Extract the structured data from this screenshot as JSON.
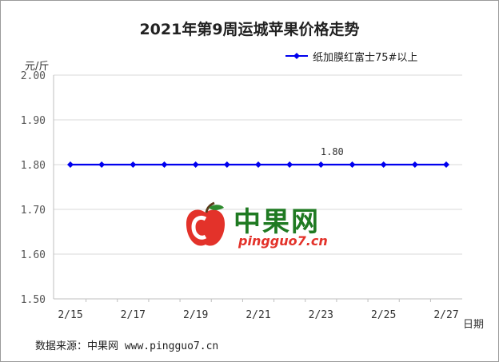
{
  "title": "2021年第9周运城苹果价格走势",
  "y_unit": "元/斤",
  "x_unit": "日期",
  "source": "数据来源：中果网 www.pingguo7.cn",
  "watermark": {
    "name": "中果网",
    "url": "pingguo7.cn"
  },
  "colors": {
    "series": "#0000ee",
    "grid": "#d9d9d9",
    "axis": "#bfbfbf",
    "label": "#555555"
  },
  "chart_data": {
    "type": "line",
    "x": [
      "2/15",
      "2/16",
      "2/17",
      "2/18",
      "2/19",
      "2/20",
      "2/21",
      "2/22",
      "2/23",
      "2/24",
      "2/25",
      "2/26",
      "2/27"
    ],
    "x_tick_labels": [
      "2/15",
      "2/17",
      "2/19",
      "2/21",
      "2/23",
      "2/25",
      "2/27"
    ],
    "series": [
      {
        "name": "纸加膜红富士75#以上",
        "values": [
          1.8,
          1.8,
          1.8,
          1.8,
          1.8,
          1.8,
          1.8,
          1.8,
          1.8,
          1.8,
          1.8,
          1.8,
          1.8
        ],
        "marker": "diamond"
      }
    ],
    "data_labels": [
      {
        "index": 8,
        "text": "1.80"
      }
    ],
    "ylim": [
      1.5,
      2.0
    ],
    "y_ticks": [
      "1.50",
      "1.60",
      "1.70",
      "1.80",
      "1.90",
      "2.00"
    ],
    "grid": true,
    "legend": "top-right"
  }
}
